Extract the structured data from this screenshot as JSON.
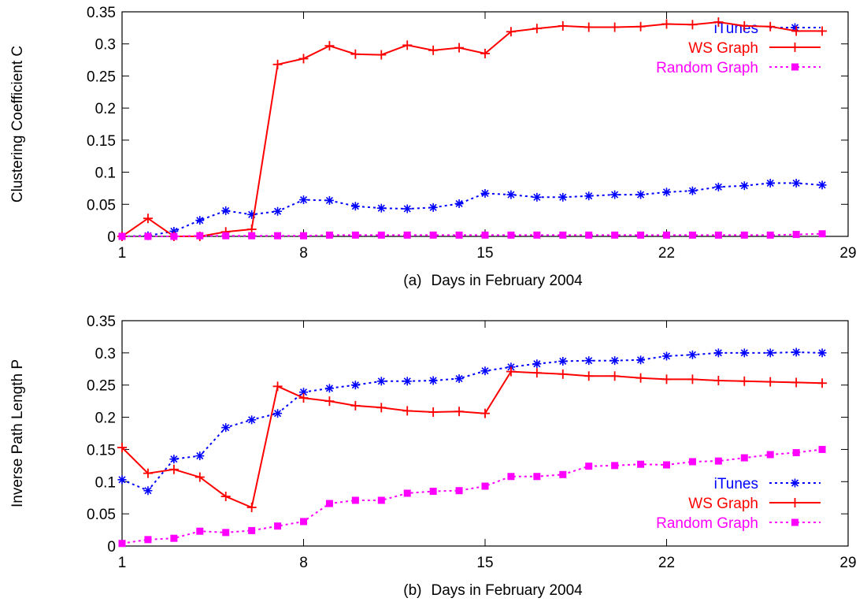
{
  "chart_data": [
    {
      "type": "line",
      "panel_label": "(a)",
      "xlabel": "Days in February 2004",
      "ylabel": "Clustering Coefficient C",
      "xlim": [
        1,
        29
      ],
      "ylim": [
        0,
        0.35
      ],
      "xticks": [
        1,
        8,
        15,
        22,
        29
      ],
      "yticks": [
        0,
        0.05,
        0.1,
        0.15,
        0.2,
        0.25,
        0.3,
        0.35
      ],
      "legend_position": "top-right",
      "grid": false,
      "x": [
        1,
        2,
        3,
        4,
        5,
        6,
        7,
        8,
        9,
        10,
        11,
        12,
        13,
        14,
        15,
        16,
        17,
        18,
        19,
        20,
        21,
        22,
        23,
        24,
        25,
        26,
        27,
        28
      ],
      "series": [
        {
          "name": "iTunes",
          "color": "#0000ff",
          "line_style": "dotted",
          "marker": "asterisk",
          "values": [
            0.0,
            0.001,
            0.008,
            0.025,
            0.04,
            0.034,
            0.039,
            0.057,
            0.056,
            0.047,
            0.044,
            0.043,
            0.045,
            0.051,
            0.067,
            0.065,
            0.061,
            0.061,
            0.063,
            0.065,
            0.065,
            0.069,
            0.071,
            0.077,
            0.079,
            0.083,
            0.083,
            0.08
          ]
        },
        {
          "name": "WS Graph",
          "color": "#ff0000",
          "line_style": "solid",
          "marker": "plus",
          "values": [
            0.0,
            0.028,
            0.0,
            0.0,
            0.007,
            0.011,
            0.268,
            0.277,
            0.297,
            0.284,
            0.283,
            0.298,
            0.29,
            0.294,
            0.285,
            0.319,
            0.324,
            0.328,
            0.326,
            0.326,
            0.327,
            0.331,
            0.33,
            0.334,
            0.328,
            0.327,
            0.32,
            0.32
          ]
        },
        {
          "name": "Random Graph",
          "color": "#ff00ff",
          "line_style": "dotted",
          "marker": "filled-square",
          "values": [
            0.0,
            0.0,
            0.0,
            0.001,
            0.001,
            0.001,
            0.001,
            0.001,
            0.002,
            0.002,
            0.002,
            0.002,
            0.002,
            0.002,
            0.002,
            0.002,
            0.002,
            0.002,
            0.002,
            0.002,
            0.002,
            0.002,
            0.002,
            0.002,
            0.002,
            0.002,
            0.003,
            0.004
          ]
        }
      ]
    },
    {
      "type": "line",
      "panel_label": "(b)",
      "xlabel": "Days in February 2004",
      "ylabel": "Inverse Path Length P",
      "xlim": [
        1,
        29
      ],
      "ylim": [
        0,
        0.35
      ],
      "xticks": [
        1,
        8,
        15,
        22,
        29
      ],
      "yticks": [
        0,
        0.05,
        0.1,
        0.15,
        0.2,
        0.25,
        0.3,
        0.35
      ],
      "legend_position": "bottom-right",
      "grid": false,
      "x": [
        1,
        2,
        3,
        4,
        5,
        6,
        7,
        8,
        9,
        10,
        11,
        12,
        13,
        14,
        15,
        16,
        17,
        18,
        19,
        20,
        21,
        22,
        23,
        24,
        25,
        26,
        27,
        28
      ],
      "series": [
        {
          "name": "iTunes",
          "color": "#0000ff",
          "line_style": "dotted",
          "marker": "asterisk",
          "values": [
            0.103,
            0.086,
            0.135,
            0.14,
            0.184,
            0.196,
            0.206,
            0.239,
            0.245,
            0.25,
            0.256,
            0.256,
            0.257,
            0.26,
            0.272,
            0.278,
            0.283,
            0.287,
            0.288,
            0.288,
            0.289,
            0.295,
            0.297,
            0.3,
            0.3,
            0.3,
            0.301,
            0.3
          ]
        },
        {
          "name": "WS Graph",
          "color": "#ff0000",
          "line_style": "solid",
          "marker": "plus",
          "values": [
            0.153,
            0.113,
            0.119,
            0.107,
            0.077,
            0.06,
            0.248,
            0.23,
            0.225,
            0.218,
            0.215,
            0.21,
            0.208,
            0.209,
            0.206,
            0.271,
            0.269,
            0.267,
            0.264,
            0.264,
            0.261,
            0.259,
            0.259,
            0.257,
            0.256,
            0.255,
            0.254,
            0.253
          ]
        },
        {
          "name": "Random Graph",
          "color": "#ff00ff",
          "line_style": "dotted",
          "marker": "filled-square",
          "values": [
            0.004,
            0.01,
            0.012,
            0.023,
            0.021,
            0.024,
            0.031,
            0.038,
            0.066,
            0.071,
            0.071,
            0.082,
            0.085,
            0.086,
            0.093,
            0.108,
            0.108,
            0.111,
            0.124,
            0.125,
            0.127,
            0.126,
            0.131,
            0.132,
            0.137,
            0.142,
            0.145,
            0.15
          ]
        }
      ]
    }
  ]
}
